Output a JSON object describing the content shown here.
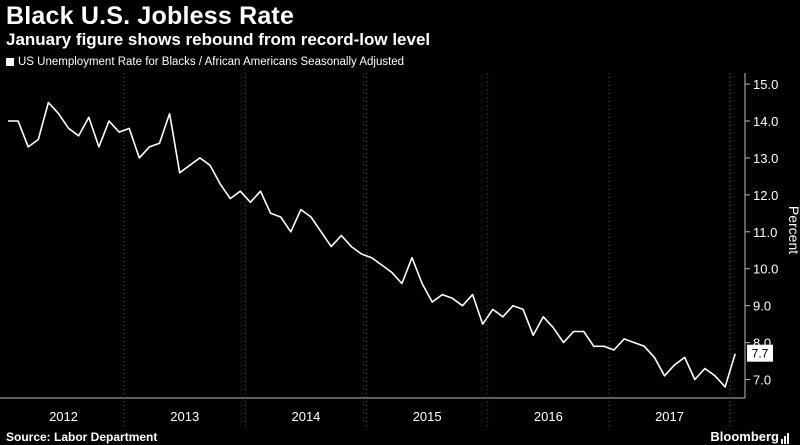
{
  "title": "Black U.S. Jobless Rate",
  "subtitle": "January figure shows rebound from record-low level",
  "source": "Source: Labor Department",
  "brand": "Bloomberg",
  "colors": {
    "background": "#000000",
    "line": "#ffffff",
    "grid": "#444444"
  },
  "chart_data": {
    "type": "line",
    "series": [
      {
        "name": "US Unemployment Rate for Blacks / African Americans Seasonally Adjusted",
        "x": [
          "2012-01",
          "2012-02",
          "2012-03",
          "2012-04",
          "2012-05",
          "2012-06",
          "2012-07",
          "2012-08",
          "2012-09",
          "2012-10",
          "2012-11",
          "2012-12",
          "2013-01",
          "2013-02",
          "2013-03",
          "2013-04",
          "2013-05",
          "2013-06",
          "2013-07",
          "2013-08",
          "2013-09",
          "2013-10",
          "2013-11",
          "2013-12",
          "2014-01",
          "2014-02",
          "2014-03",
          "2014-04",
          "2014-05",
          "2014-06",
          "2014-07",
          "2014-08",
          "2014-09",
          "2014-10",
          "2014-11",
          "2014-12",
          "2015-01",
          "2015-02",
          "2015-03",
          "2015-04",
          "2015-05",
          "2015-06",
          "2015-07",
          "2015-08",
          "2015-09",
          "2015-10",
          "2015-11",
          "2015-12",
          "2016-01",
          "2016-02",
          "2016-03",
          "2016-04",
          "2016-05",
          "2016-06",
          "2016-07",
          "2016-08",
          "2016-09",
          "2016-10",
          "2016-11",
          "2016-12",
          "2017-01",
          "2017-02",
          "2017-03",
          "2017-04",
          "2017-05",
          "2017-06",
          "2017-07",
          "2017-08",
          "2017-09",
          "2017-10",
          "2017-11",
          "2017-12",
          "2018-01"
        ],
        "values": [
          14.0,
          14.0,
          13.3,
          13.5,
          14.5,
          14.2,
          13.8,
          13.6,
          14.1,
          13.3,
          14.0,
          13.7,
          13.8,
          13.0,
          13.3,
          13.4,
          14.2,
          12.6,
          12.8,
          13.0,
          12.8,
          12.3,
          11.9,
          12.1,
          11.8,
          12.1,
          11.5,
          11.4,
          11.0,
          11.6,
          11.4,
          11.0,
          10.6,
          10.9,
          10.6,
          10.4,
          10.3,
          10.1,
          9.9,
          9.6,
          10.3,
          9.6,
          9.1,
          9.3,
          9.2,
          9.0,
          9.3,
          8.5,
          8.9,
          8.7,
          9.0,
          8.9,
          8.2,
          8.7,
          8.4,
          8.0,
          8.3,
          8.3,
          7.9,
          7.9,
          7.8,
          8.1,
          8.0,
          7.9,
          7.6,
          7.1,
          7.4,
          7.6,
          7.0,
          7.3,
          7.1,
          6.8,
          7.7
        ]
      }
    ],
    "x_tick_labels": [
      "2012",
      "2013",
      "2014",
      "2015",
      "2016",
      "2017"
    ],
    "y_ticks": [
      "7.0",
      "8.0",
      "9.0",
      "10.0",
      "11.0",
      "12.0",
      "13.0",
      "14.0",
      "15.0"
    ],
    "ylabel": "Percent",
    "ylim": [
      6.5,
      15.3
    ],
    "last_value_label": "7.7",
    "grid": "vertical dotted at year boundaries",
    "y_axis_side": "right"
  }
}
